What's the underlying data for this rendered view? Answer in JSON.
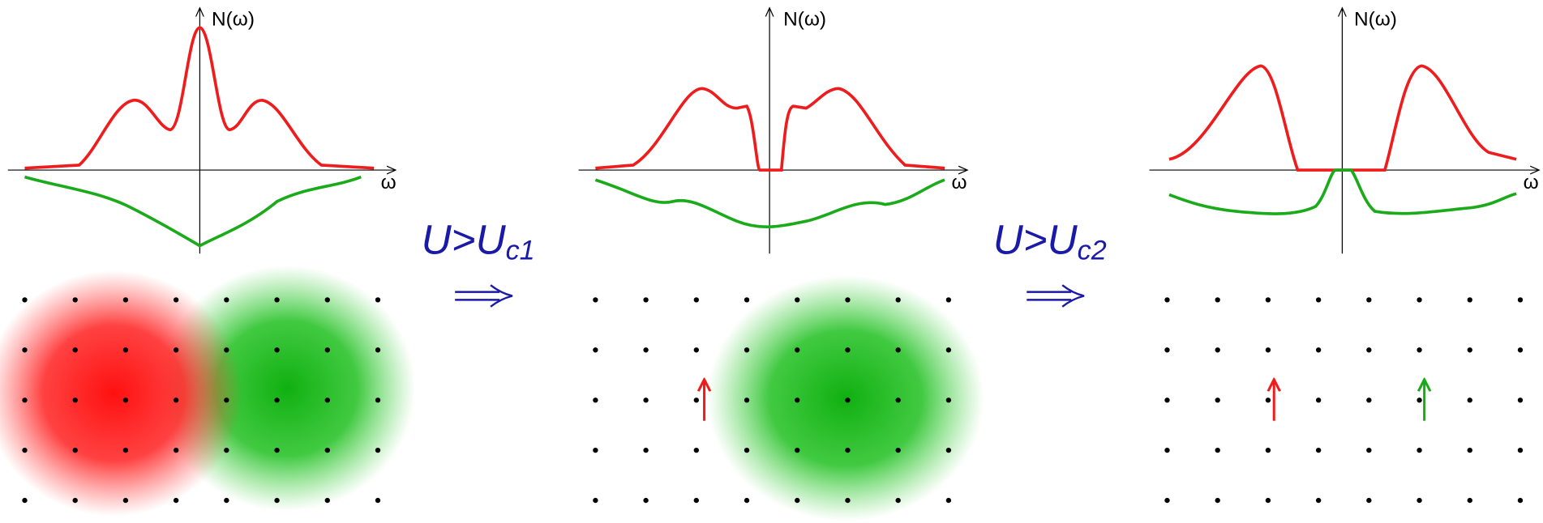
{
  "panels": [
    {
      "y_axis_label": "N(ω)",
      "x_axis_label": "ω"
    },
    {
      "y_axis_label": "N(ω)",
      "x_axis_label": "ω"
    },
    {
      "y_axis_label": "N(ω)",
      "x_axis_label": "ω"
    }
  ],
  "transitions": [
    {
      "text": "U>U",
      "subscript": "c1"
    },
    {
      "text": "U>U",
      "subscript": "c2"
    }
  ]
}
